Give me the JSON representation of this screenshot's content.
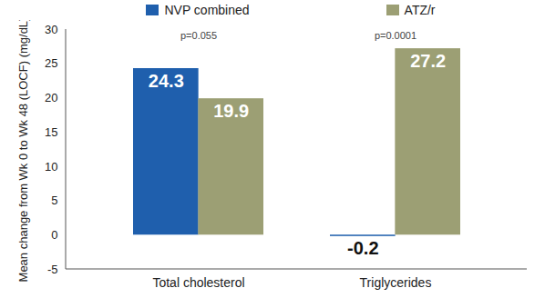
{
  "chart_data": {
    "type": "bar",
    "categories": [
      "Total cholesterol",
      "Triglycerides"
    ],
    "series": [
      {
        "name": "NVP combined",
        "color": "#1f5fad",
        "values": [
          24.3,
          -0.2
        ]
      },
      {
        "name": "ATZ/r",
        "color": "#9c9f74",
        "values": [
          19.9,
          27.2
        ]
      }
    ],
    "ylabel": "Mean change from Wk 0 to Wk 48 (LOCF) (mg/dL)",
    "ylim": [
      -5,
      30
    ],
    "yticks": [
      -5,
      0,
      5,
      10,
      15,
      20,
      25,
      30
    ],
    "grid": false,
    "legend": "top",
    "data_labels": true,
    "annotations": [
      {
        "category": "Total cholesterol",
        "text": "p=0.055"
      },
      {
        "category": "Triglycerides",
        "text": "p=0.0001"
      }
    ]
  }
}
